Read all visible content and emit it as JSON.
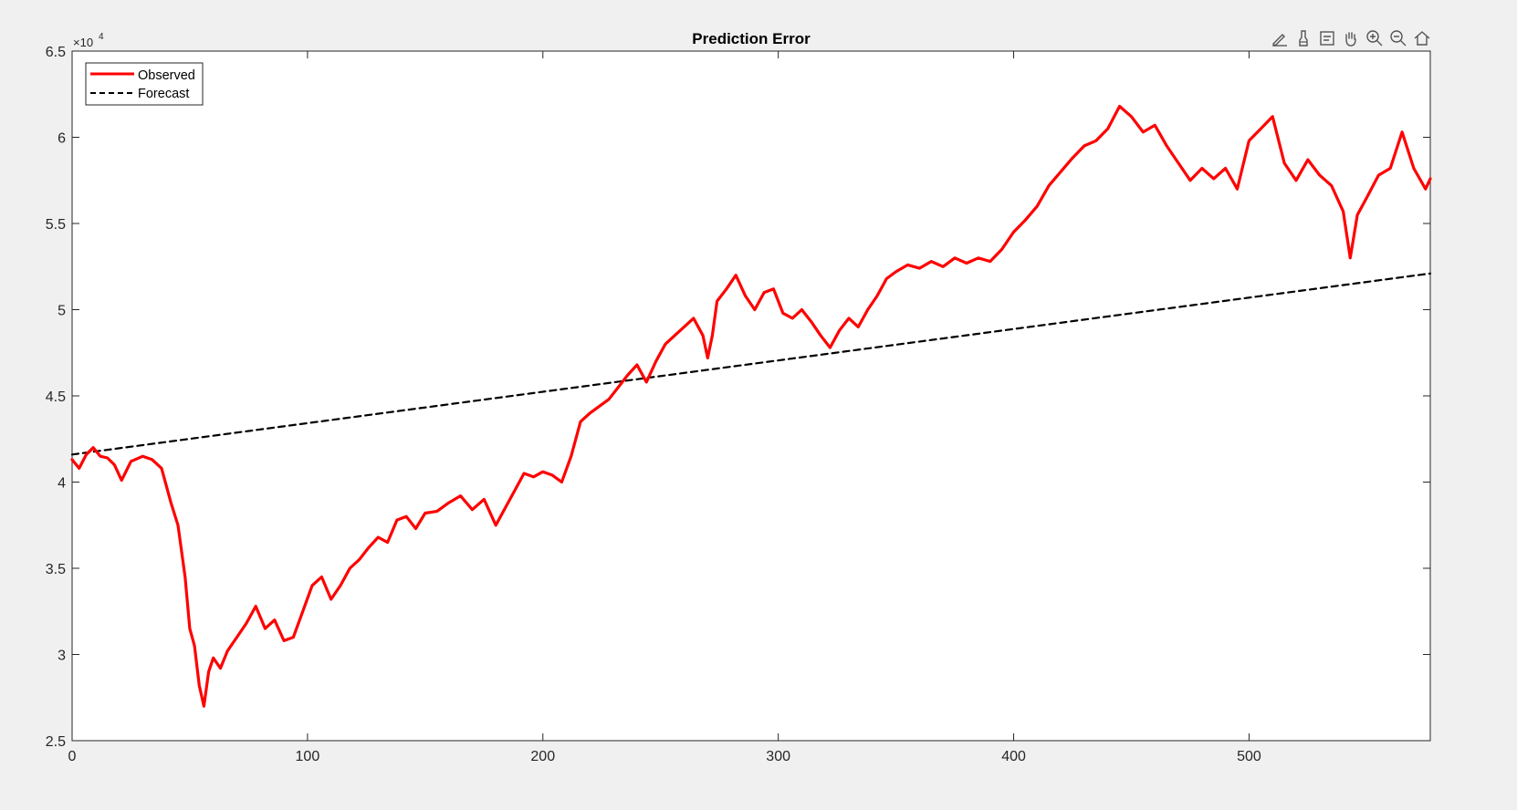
{
  "chart_data": {
    "type": "line",
    "title": "Prediction Error",
    "xlabel": "",
    "ylabel": "",
    "xlim": [
      0,
      577
    ],
    "ylim": [
      25000,
      65000
    ],
    "x_ticks": [
      0,
      100,
      200,
      300,
      400,
      500
    ],
    "x_tick_labels": [
      "0",
      "100",
      "200",
      "300",
      "400",
      "500"
    ],
    "y_ticks": [
      25000,
      30000,
      35000,
      40000,
      45000,
      50000,
      55000,
      60000,
      65000
    ],
    "y_tick_labels": [
      "2.5",
      "3",
      "3.5",
      "4",
      "4.5",
      "5",
      "5.5",
      "6",
      "6.5"
    ],
    "y_exponent_label": "×10",
    "y_exponent_power": "4",
    "grid": false,
    "legend_position": "top-left",
    "series": [
      {
        "name": "Observed",
        "color": "#ff0000",
        "style": "solid",
        "x": [
          0,
          3,
          6,
          9,
          12,
          15,
          18,
          21,
          25,
          30,
          34,
          38,
          42,
          45,
          48,
          50,
          52,
          54,
          56,
          58,
          60,
          63,
          66,
          70,
          74,
          78,
          82,
          86,
          90,
          94,
          98,
          102,
          106,
          110,
          114,
          118,
          122,
          126,
          130,
          134,
          138,
          142,
          146,
          150,
          155,
          160,
          165,
          170,
          175,
          180,
          184,
          188,
          192,
          196,
          200,
          204,
          208,
          212,
          216,
          220,
          224,
          228,
          232,
          236,
          240,
          244,
          248,
          252,
          256,
          260,
          264,
          268,
          270,
          272,
          274,
          278,
          282,
          286,
          290,
          294,
          298,
          302,
          306,
          310,
          314,
          318,
          322,
          326,
          330,
          334,
          338,
          342,
          346,
          350,
          355,
          360,
          365,
          370,
          375,
          380,
          385,
          390,
          395,
          400,
          405,
          410,
          415,
          420,
          425,
          430,
          435,
          440,
          445,
          450,
          455,
          460,
          465,
          470,
          475,
          480,
          485,
          490,
          495,
          500,
          505,
          510,
          515,
          520,
          525,
          530,
          535,
          540,
          543,
          546,
          550,
          555,
          560,
          565,
          570,
          575,
          577
        ],
        "y": [
          41300,
          40800,
          41600,
          42000,
          41500,
          41400,
          41000,
          40100,
          41200,
          41500,
          41300,
          40800,
          38800,
          37500,
          34500,
          31500,
          30500,
          28200,
          27000,
          29000,
          29800,
          29200,
          30200,
          31000,
          31800,
          32800,
          31500,
          32000,
          30800,
          31000,
          32500,
          34000,
          34500,
          33200,
          34000,
          35000,
          35500,
          36200,
          36800,
          36500,
          37800,
          38000,
          37300,
          38200,
          38300,
          38800,
          39200,
          38400,
          39000,
          37500,
          38500,
          39500,
          40500,
          40300,
          40600,
          40400,
          40000,
          41500,
          43500,
          44000,
          44400,
          44800,
          45500,
          46200,
          46800,
          45800,
          47000,
          48000,
          48500,
          49000,
          49500,
          48500,
          47200,
          48500,
          50500,
          51200,
          52000,
          50800,
          50000,
          51000,
          51200,
          49800,
          49500,
          50000,
          49300,
          48500,
          47800,
          48800,
          49500,
          49000,
          50000,
          50800,
          51800,
          52200,
          52600,
          52400,
          52800,
          52500,
          53000,
          52700,
          53000,
          52800,
          53500,
          54500,
          55200,
          56000,
          57200,
          58000,
          58800,
          59500,
          59800,
          60500,
          61800,
          61200,
          60300,
          60700,
          59500,
          58500,
          57500,
          58200,
          57600,
          58200,
          57000,
          59800,
          60500,
          61200,
          58500,
          57500,
          58700,
          57800,
          57200,
          55700,
          53000,
          55500,
          56500,
          57800,
          58200,
          60300,
          58200,
          57000,
          57600
        ]
      },
      {
        "name": "Forecast",
        "color": "#000000",
        "style": "dashed",
        "x": [
          0,
          577
        ],
        "y": [
          41600,
          52100
        ]
      }
    ]
  },
  "toolbar": {
    "icons": [
      "brush-edit-icon",
      "brush-icon",
      "datatip-icon",
      "pan-hand-icon",
      "zoom-in-icon",
      "zoom-out-icon",
      "home-icon"
    ]
  }
}
